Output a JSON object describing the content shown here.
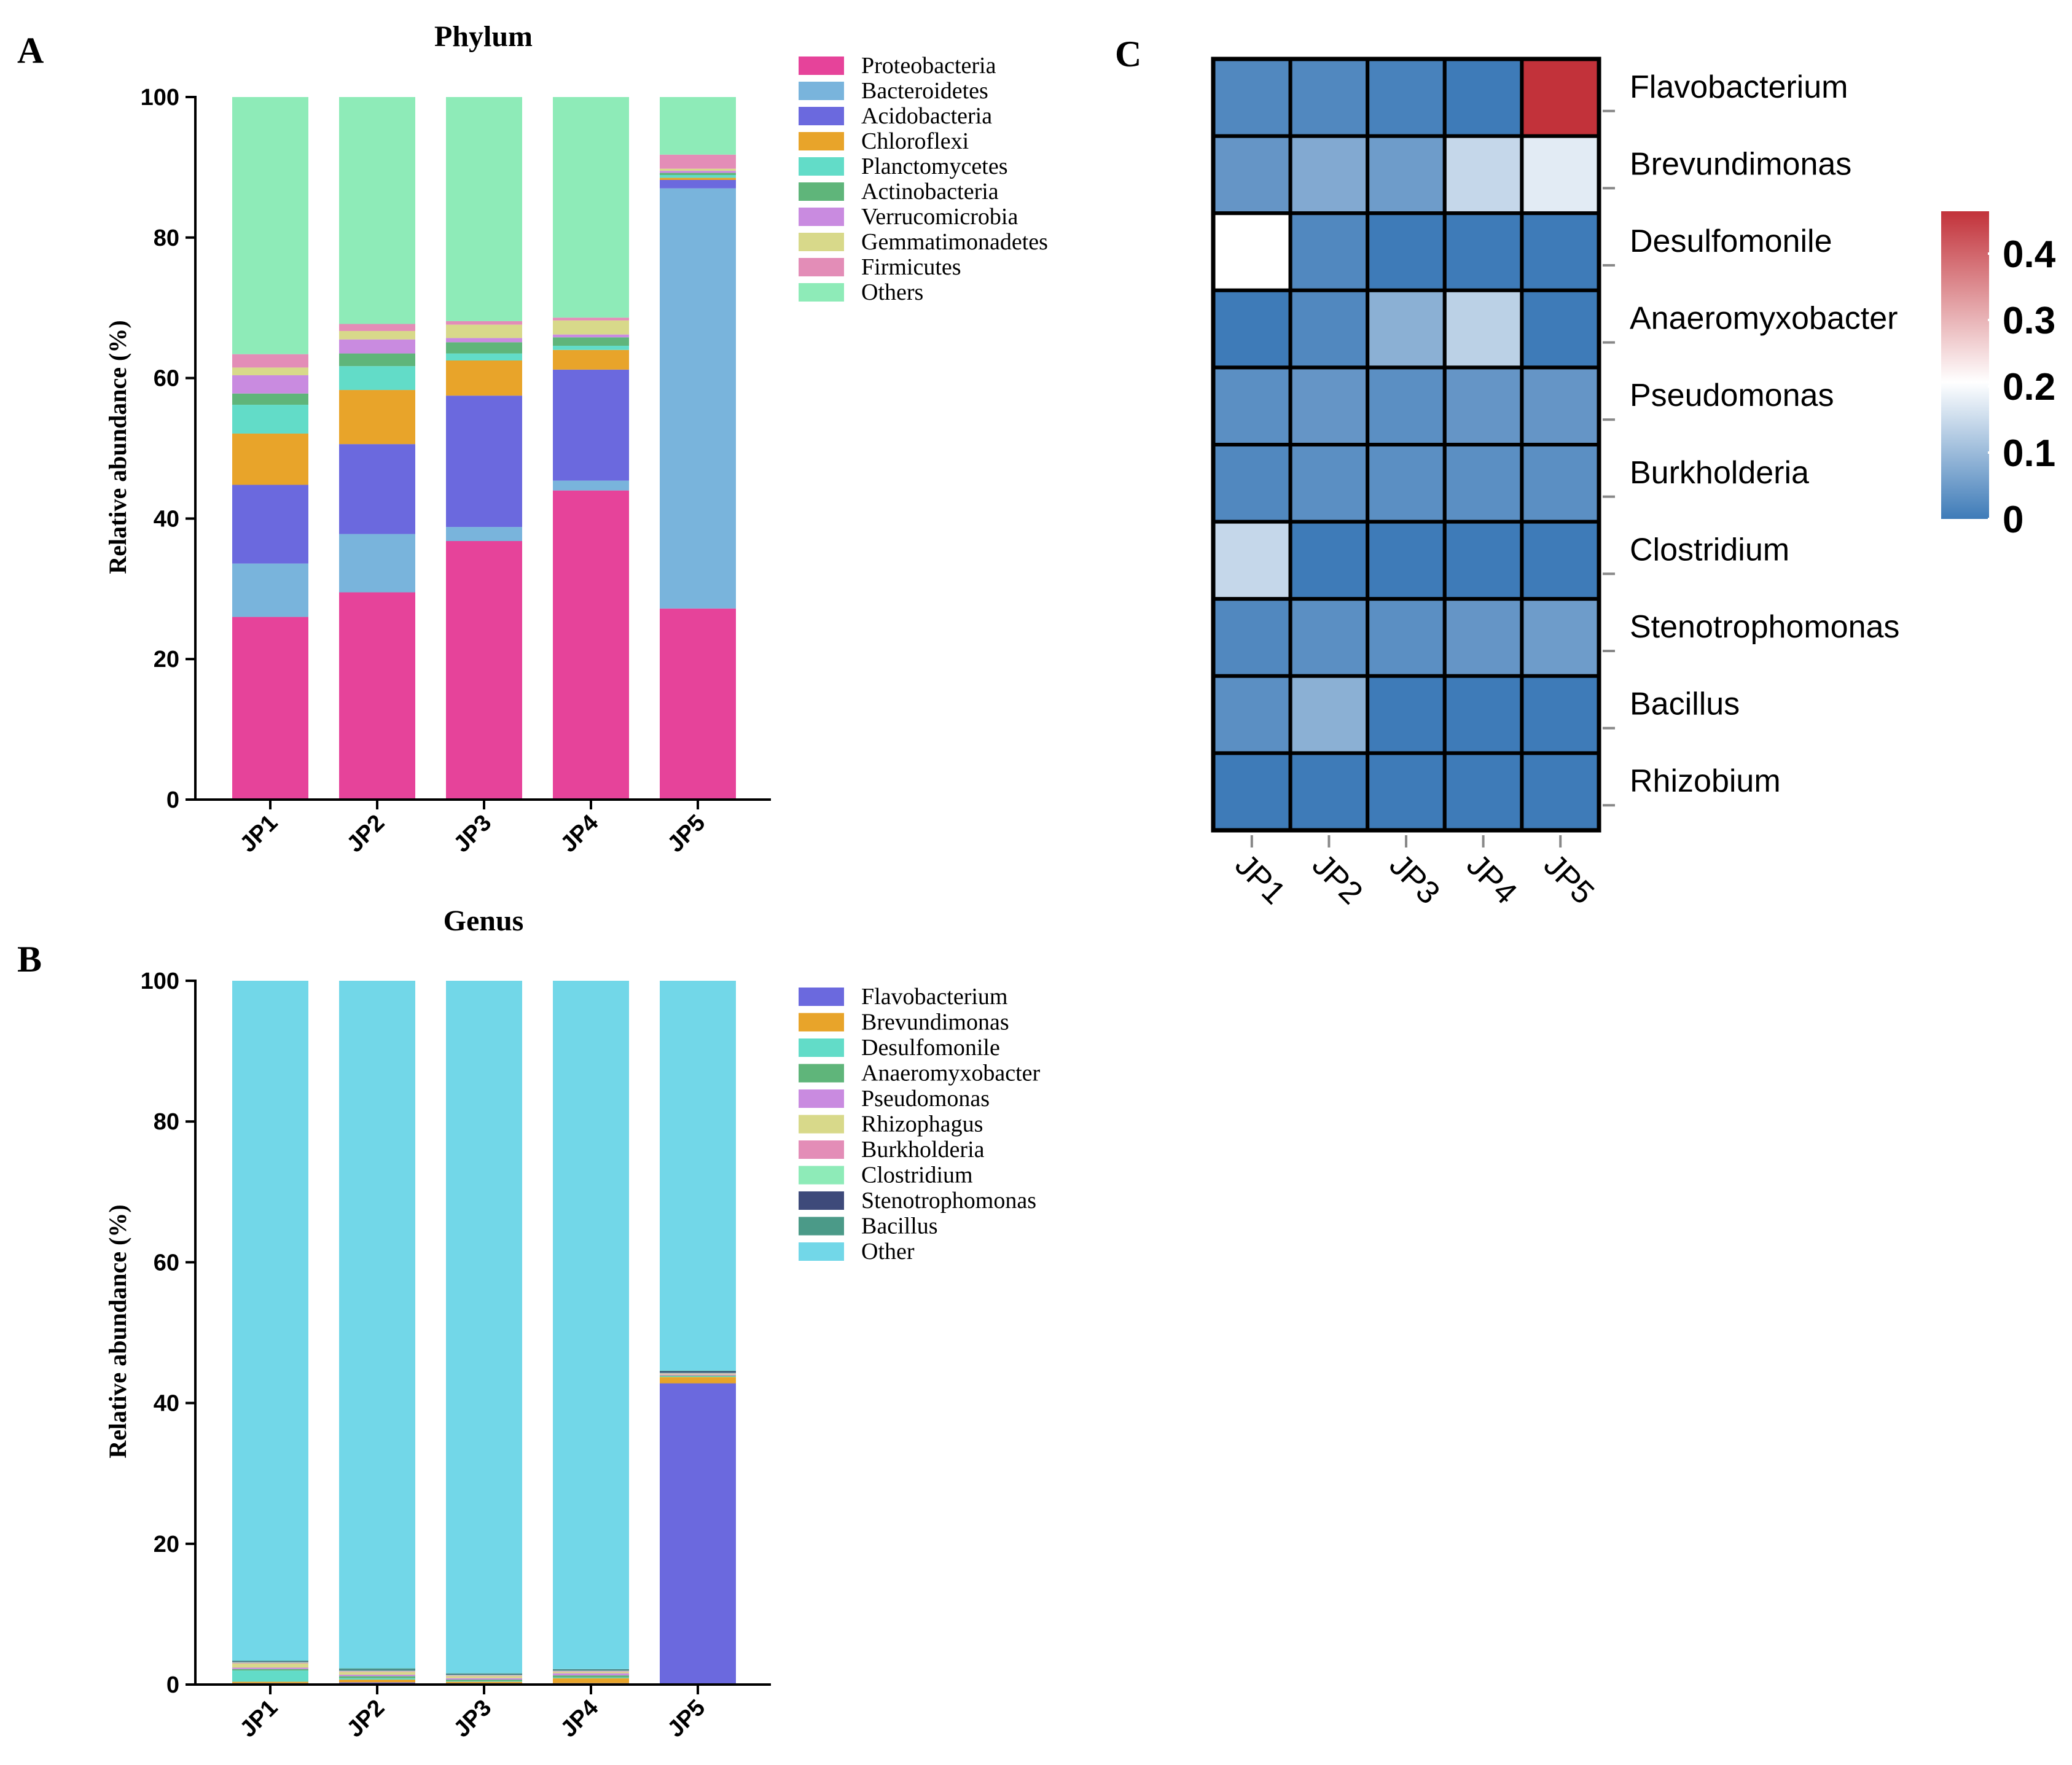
{
  "panels": {
    "A": "A",
    "B": "B",
    "C": "C"
  },
  "chart_data": [
    {
      "id": "A",
      "type": "bar",
      "stacked": true,
      "title": "Phylum",
      "xlabel": "",
      "ylabel": "Relative abundance (%)",
      "ylim": [
        0,
        100
      ],
      "yticks": [
        0,
        20,
        40,
        60,
        80,
        100
      ],
      "categories": [
        "JP1",
        "JP2",
        "JP3",
        "JP4",
        "JP5"
      ],
      "legend_position": "right",
      "series": [
        {
          "name": "Proteobacteria",
          "color": "#E6439A",
          "values": [
            26.0,
            29.5,
            36.8,
            44.0,
            27.2
          ]
        },
        {
          "name": "Bacteroidetes",
          "color": "#79B4DC",
          "values": [
            7.6,
            8.3,
            2.0,
            1.4,
            59.8
          ]
        },
        {
          "name": "Acidobacteria",
          "color": "#6B69DE",
          "values": [
            11.2,
            12.8,
            18.7,
            15.8,
            1.2
          ]
        },
        {
          "name": "Chloroflexi",
          "color": "#E8A42A",
          "values": [
            7.3,
            7.7,
            5.0,
            2.8,
            0.3
          ]
        },
        {
          "name": "Planctomycetes",
          "color": "#62DCC8",
          "values": [
            4.1,
            3.4,
            1.0,
            0.6,
            0.4
          ]
        },
        {
          "name": "Actinobacteria",
          "color": "#5FB57A",
          "values": [
            1.6,
            1.8,
            1.6,
            1.2,
            0.3
          ]
        },
        {
          "name": "Verrucomicrobia",
          "color": "#C98BE0",
          "values": [
            2.6,
            2.0,
            0.6,
            0.4,
            0.3
          ]
        },
        {
          "name": "Gemmatimonadetes",
          "color": "#D8D98A",
          "values": [
            1.1,
            1.2,
            1.9,
            2.0,
            0.3
          ]
        },
        {
          "name": "Firmicutes",
          "color": "#E38DB7",
          "values": [
            1.9,
            1.0,
            0.5,
            0.4,
            2.0
          ]
        },
        {
          "name": "Others",
          "color": "#8EEBB8",
          "values": [
            36.6,
            32.3,
            31.9,
            31.4,
            8.2
          ]
        }
      ]
    },
    {
      "id": "B",
      "type": "bar",
      "stacked": true,
      "title": "Genus",
      "xlabel": "",
      "ylabel": "Relative abundance (%)",
      "ylim": [
        0,
        100
      ],
      "yticks": [
        0,
        20,
        40,
        60,
        80,
        100
      ],
      "categories": [
        "JP1",
        "JP2",
        "JP3",
        "JP4",
        "JP5"
      ],
      "legend_position": "right",
      "series": [
        {
          "name": "Flavobacterium",
          "color": "#6B69DE",
          "values": [
            0.2,
            0.3,
            0.2,
            0.2,
            42.8
          ]
        },
        {
          "name": "Brevundimonas",
          "color": "#E8A42A",
          "values": [
            0.2,
            0.4,
            0.2,
            0.7,
            0.9
          ]
        },
        {
          "name": "Desulfomonile",
          "color": "#62DCC8",
          "values": [
            1.6,
            0.2,
            0.1,
            0.1,
            0.1
          ]
        },
        {
          "name": "Anaeromyxobacter",
          "color": "#5FB57A",
          "values": [
            0.2,
            0.3,
            0.2,
            0.3,
            0.1
          ]
        },
        {
          "name": "Pseudomonas",
          "color": "#C98BE0",
          "values": [
            0.2,
            0.2,
            0.2,
            0.3,
            0.1
          ]
        },
        {
          "name": "Rhizophagus",
          "color": "#D8D98A",
          "values": [
            0.6,
            0.4,
            0.3,
            0.2,
            0.1
          ]
        },
        {
          "name": "Burkholderia",
          "color": "#E38DB7",
          "values": [
            0.1,
            0.1,
            0.1,
            0.1,
            0.1
          ]
        },
        {
          "name": "Clostridium",
          "color": "#8EEBB8",
          "values": [
            0.1,
            0.1,
            0.1,
            0.1,
            0.1
          ]
        },
        {
          "name": "Stenotrophomonas",
          "color": "#3E4A7A",
          "values": [
            0.1,
            0.1,
            0.1,
            0.1,
            0.2
          ]
        },
        {
          "name": "Bacillus",
          "color": "#4B9A88",
          "values": [
            0.1,
            0.2,
            0.1,
            0.1,
            0.1
          ]
        },
        {
          "name": "Other",
          "color": "#72D7E8",
          "values": [
            96.6,
            97.7,
            98.4,
            97.8,
            55.4
          ]
        }
      ]
    },
    {
      "id": "C",
      "type": "heatmap",
      "title": "",
      "xlabel": "",
      "ylabel": "",
      "x": [
        "JP1",
        "JP2",
        "JP3",
        "JP4",
        "JP5"
      ],
      "y": [
        "Flavobacterium",
        "Brevundimonas",
        "Desulfomonile",
        "Anaeromyxobacter",
        "Pseudomonas",
        "Burkholderia",
        "Clostridium",
        "Stenotrophomonas",
        "Bacillus",
        "Rhizobium"
      ],
      "values": [
        [
          0.02,
          0.02,
          0.01,
          0.0,
          0.45
        ],
        [
          0.04,
          0.07,
          0.05,
          0.14,
          0.17
        ],
        [
          0.2,
          0.02,
          0.0,
          0.0,
          0.0
        ],
        [
          0.0,
          0.02,
          0.08,
          0.13,
          0.0
        ],
        [
          0.03,
          0.04,
          0.03,
          0.04,
          0.04
        ],
        [
          0.02,
          0.03,
          0.03,
          0.03,
          0.03
        ],
        [
          0.14,
          0.0,
          0.0,
          0.0,
          0.0
        ],
        [
          0.02,
          0.03,
          0.03,
          0.04,
          0.05
        ],
        [
          0.03,
          0.08,
          0.0,
          0.0,
          0.0
        ],
        [
          0.0,
          0.0,
          0.0,
          0.0,
          0.0
        ]
      ],
      "colorbar": {
        "min": 0,
        "max": 0.45,
        "ticks": [
          0,
          0.1,
          0.2,
          0.3,
          0.4
        ],
        "tick_labels": [
          "0",
          "0.1",
          "0.2",
          "0.3",
          "0.4"
        ],
        "colors": [
          "#3E7BB8",
          "#FFFFFF",
          "#C2323A"
        ],
        "mid": 0.2
      }
    }
  ]
}
